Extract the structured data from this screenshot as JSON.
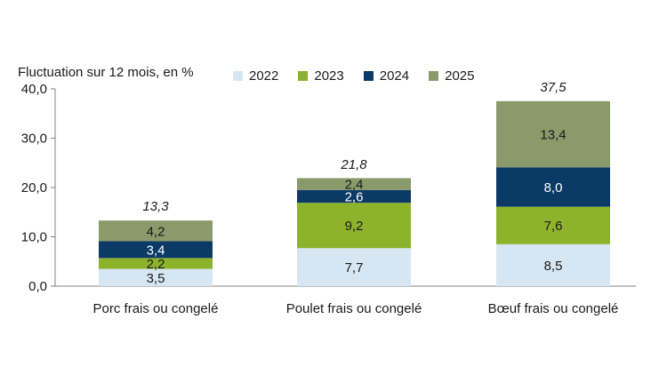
{
  "chart_data": {
    "type": "bar",
    "stacked": true,
    "ylabel": "Fluctuation sur 12 mois, en %",
    "ylim": [
      0,
      40
    ],
    "yticks": [
      "0,0",
      "10,0",
      "20,0",
      "30,0",
      "40,0"
    ],
    "ytick_values": [
      0,
      10,
      20,
      30,
      40
    ],
    "categories": [
      "Porc frais ou congelé",
      "Poulet frais ou congelé",
      "Bœuf frais ou congelé"
    ],
    "series": [
      {
        "name": "2022",
        "color": "#d6e6f3",
        "label_color": "#1a1a1a",
        "values": [
          3.5,
          7.7,
          8.5
        ],
        "labels": [
          "3,5",
          "7,7",
          "8,5"
        ]
      },
      {
        "name": "2023",
        "color": "#8db32d",
        "label_color": "#1a1a1a",
        "values": [
          2.2,
          9.2,
          7.6
        ],
        "labels": [
          "2,2",
          "9,2",
          "7,6"
        ]
      },
      {
        "name": "2024",
        "color": "#0b3a66",
        "label_color": "#ffffff",
        "values": [
          3.4,
          2.6,
          8.0
        ],
        "labels": [
          "3,4",
          "2,6",
          "8,0"
        ]
      },
      {
        "name": "2025",
        "color": "#8a9a6a",
        "label_color": "#1a1a1a",
        "values": [
          4.2,
          2.4,
          13.4
        ],
        "labels": [
          "4,2",
          "2,4",
          "13,4"
        ]
      }
    ],
    "totals": [
      13.3,
      21.8,
      37.5
    ],
    "total_labels": [
      "13,3",
      "21,8",
      "37,5"
    ],
    "legend_position": "top",
    "grid": false
  }
}
